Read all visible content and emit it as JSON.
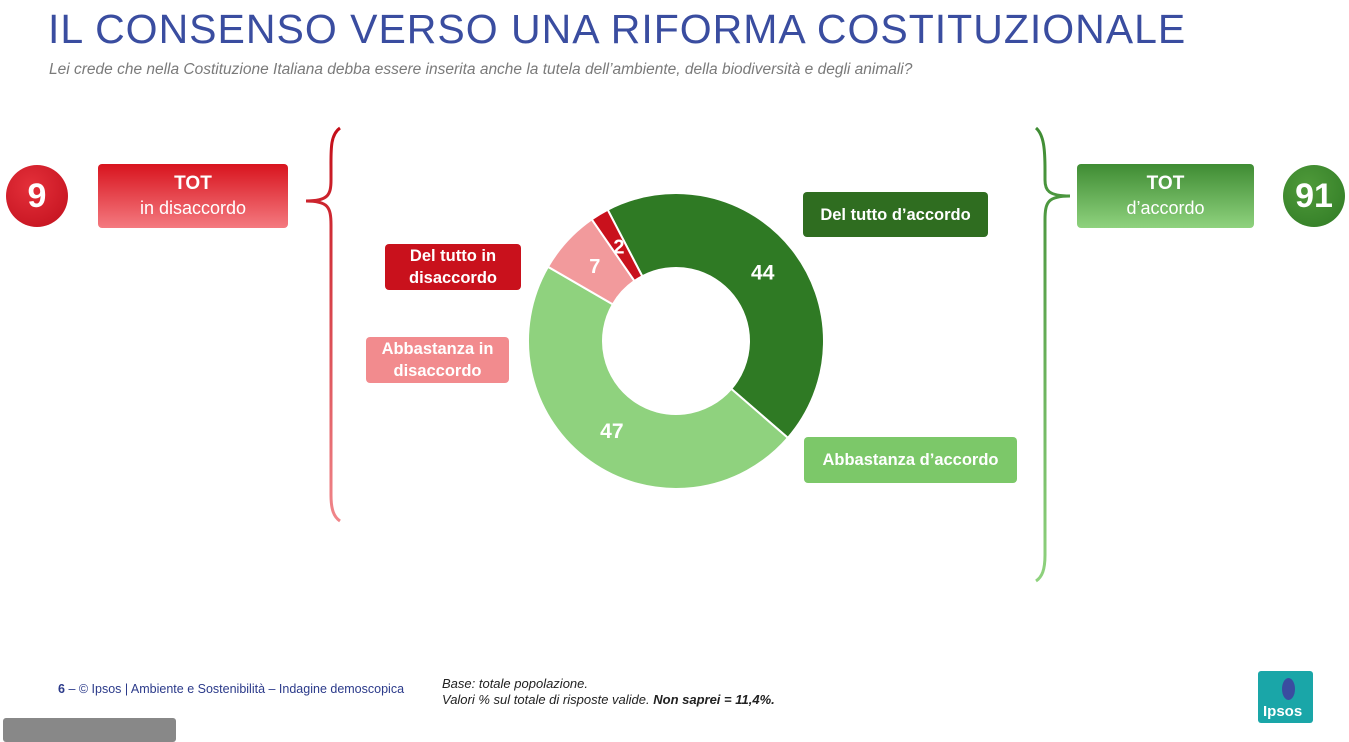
{
  "title": "IL CONSENSO VERSO UNA RIFORMA COSTITUZIONALE",
  "subtitle": "Lei crede che nella Costituzione Italiana debba essere inserita anche la tutela dell’ambiente, della biodiversità e degli animali?",
  "disagree_total": {
    "value": "9",
    "label_line1": "TOT",
    "label_line2": "in disaccordo",
    "color": "#d8141e"
  },
  "agree_total": {
    "value": "91",
    "label_line1": "TOT",
    "label_line2": "d’accordo",
    "color": "#3f8c33"
  },
  "chart_data": {
    "type": "pie",
    "donut": true,
    "slices": [
      {
        "name": "Del tutto d’accordo",
        "value": 44,
        "color": "#2f7a24"
      },
      {
        "name": "Abbastanza d’accordo",
        "value": 47,
        "color": "#8fd27e"
      },
      {
        "name": "Abbastanza in disaccordo",
        "value": 7,
        "color": "#f29a9c"
      },
      {
        "name": "Del tutto in disaccordo",
        "value": 2,
        "color": "#c9111c"
      }
    ]
  },
  "labels": {
    "del_tutto_disaccordo": "Del tutto in disaccordo",
    "abbastanza_disaccordo": "Abbastanza in disaccordo",
    "del_tutto_accordo": "Del tutto d’accordo",
    "abbastanza_accordo": "Abbastanza d’accordo"
  },
  "footer": {
    "page": "6",
    "text": "– © Ipsos | Ambiente e Sostenibilità – Indagine demoscopica"
  },
  "base_note": {
    "line1": "Base: totale popolazione.",
    "line2_prefix": "Valori % sul totale di risposte valide. ",
    "line2_bold": "Non saprei = 11,4%."
  },
  "logo_text": "Ipsos"
}
